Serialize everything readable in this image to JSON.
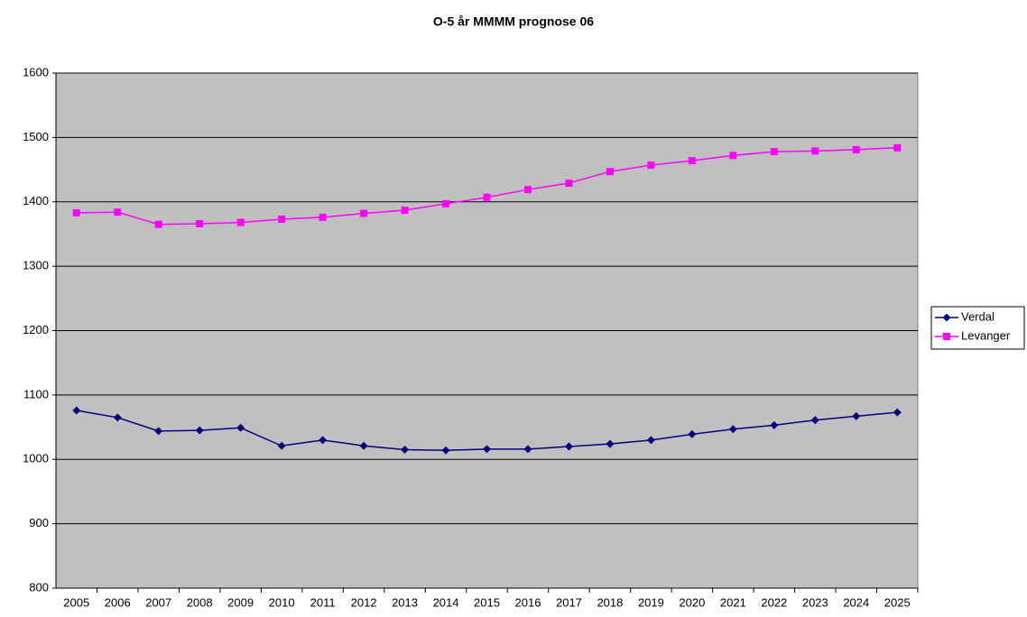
{
  "chart_data": {
    "type": "line",
    "title": "O-5 år MMMM prognose 06",
    "categories": [
      "2005",
      "2006",
      "2007",
      "2008",
      "2009",
      "2010",
      "2011",
      "2012",
      "2013",
      "2014",
      "2015",
      "2016",
      "2017",
      "2018",
      "2019",
      "2020",
      "2021",
      "2022",
      "2023",
      "2024",
      "2025"
    ],
    "series": [
      {
        "name": "Verdal",
        "color": "#000080",
        "marker": "diamond",
        "values": [
          1076,
          1065,
          1044,
          1045,
          1049,
          1021,
          1030,
          1021,
          1015,
          1014,
          1016,
          1016,
          1020,
          1024,
          1030,
          1039,
          1047,
          1053,
          1061,
          1067,
          1073
        ]
      },
      {
        "name": "Levanger",
        "color": "#ff00ff",
        "marker": "square",
        "values": [
          1383,
          1384,
          1365,
          1366,
          1368,
          1373,
          1376,
          1382,
          1387,
          1397,
          1407,
          1419,
          1429,
          1447,
          1457,
          1464,
          1472,
          1478,
          1479,
          1481,
          1484
        ]
      }
    ],
    "ylim": [
      800,
      1600
    ],
    "yticks": [
      800,
      900,
      1000,
      1100,
      1200,
      1300,
      1400,
      1500,
      1600
    ],
    "grid": true,
    "legend": "right"
  }
}
